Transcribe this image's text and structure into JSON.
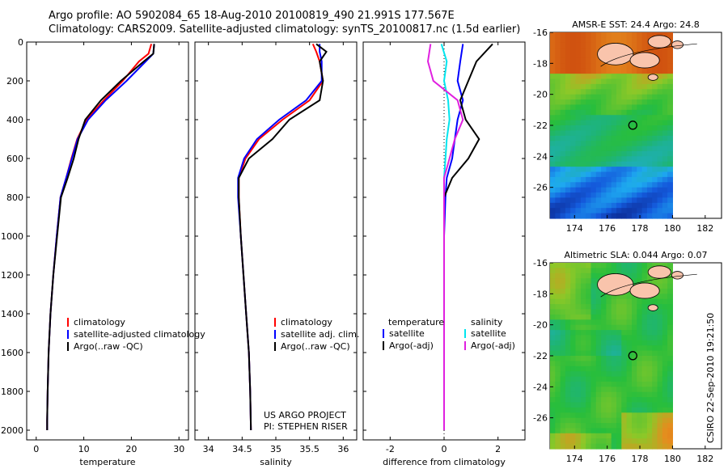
{
  "header": {
    "line1": "Argo profile: AO 5902084_65 18-Aug-2010 20100819_490 21.991S 177.567E",
    "line2": "Climatology: CARS2009. Satellite-adjusted climatology: synTS_20100817.nc (1.5d earlier)"
  },
  "footer": {
    "credit": "CSIRO 22-Sep-2010 19:21:50"
  },
  "colors": {
    "clim": "#ff0000",
    "sat": "#0000ff",
    "argo": "#000000",
    "sal_sat": "#00e5ee",
    "sal_argo": "#e020e0"
  },
  "chart_data": [
    {
      "type": "line",
      "name": "temperature",
      "xlabel": "temperature",
      "ylabel": "",
      "xlim": [
        -2,
        32
      ],
      "ylim": [
        2050,
        0
      ],
      "xticks": [
        "0",
        "10",
        "20",
        "30"
      ],
      "xtick_values": [
        0,
        10,
        20,
        30
      ],
      "yticks": [
        "0",
        "200",
        "400",
        "600",
        "800",
        "1000",
        "1200",
        "1400",
        "1600",
        "1800",
        "2000"
      ],
      "ytick_values": [
        0,
        200,
        400,
        600,
        800,
        1000,
        1200,
        1400,
        1600,
        1800,
        2000
      ],
      "legend": [
        "climatology",
        "satellite-adjusted climatology",
        "Argo(..raw -QC)"
      ],
      "series": [
        {
          "name": "climatology",
          "color": "#ff0000",
          "x": [
            24.2,
            23.6,
            21.6,
            18.2,
            14.2,
            10.6,
            8.6,
            7.4,
            6.3,
            5.1,
            4.3,
            3.6,
            3.0,
            2.6,
            2.4,
            2.3,
            2.3
          ],
          "y": [
            10,
            60,
            100,
            200,
            300,
            400,
            500,
            600,
            700,
            800,
            1000,
            1200,
            1400,
            1600,
            1800,
            1950,
            2000
          ]
        },
        {
          "name": "satellite-adjusted climatology",
          "color": "#0000ff",
          "x": [
            24.8,
            24.6,
            23.0,
            19.0,
            14.6,
            10.9,
            8.7,
            7.5,
            6.3,
            5.1,
            4.3,
            3.6,
            3.0,
            2.6,
            2.4,
            2.3,
            2.3
          ],
          "y": [
            10,
            60,
            100,
            200,
            300,
            400,
            500,
            600,
            700,
            800,
            1000,
            1200,
            1400,
            1600,
            1800,
            1950,
            2000
          ]
        },
        {
          "name": "Argo(..raw -QC)",
          "color": "#000000",
          "x": [
            24.8,
            24.6,
            22.6,
            17.8,
            13.6,
            10.3,
            8.9,
            7.9,
            6.6,
            5.2,
            4.4,
            3.6,
            3.0,
            2.6,
            2.4,
            2.3,
            2.3
          ],
          "y": [
            10,
            60,
            100,
            200,
            300,
            400,
            500,
            600,
            700,
            800,
            1000,
            1200,
            1400,
            1600,
            1800,
            1950,
            2000
          ]
        }
      ]
    },
    {
      "type": "line",
      "name": "salinity",
      "xlabel": "salinity",
      "ylabel": "",
      "xlim": [
        33.8,
        36.2
      ],
      "ylim": [
        2050,
        0
      ],
      "xticks": [
        "34",
        "34.5",
        "35",
        "35.5",
        "36"
      ],
      "xtick_values": [
        34,
        34.5,
        35,
        35.5,
        36
      ],
      "legend": [
        "climatology",
        "satellite adj. clim.",
        "Argo(..raw -QC)"
      ],
      "annotation": [
        "US ARGO PROJECT",
        "PI: STEPHEN RISER"
      ],
      "series": [
        {
          "name": "climatology",
          "color": "#ff0000",
          "x": [
            35.55,
            35.6,
            35.65,
            35.7,
            35.5,
            35.1,
            34.75,
            34.55,
            34.45,
            34.45,
            34.48,
            34.52,
            34.56,
            34.6,
            34.62,
            34.63
          ],
          "y": [
            10,
            50,
            100,
            200,
            300,
            400,
            500,
            600,
            700,
            800,
            1000,
            1200,
            1400,
            1600,
            1800,
            2000
          ]
        },
        {
          "name": "satellite adj. clim.",
          "color": "#0000ff",
          "x": [
            35.65,
            35.65,
            35.68,
            35.68,
            35.45,
            35.05,
            34.72,
            34.53,
            34.44,
            34.44,
            34.48,
            34.52,
            34.56,
            34.6,
            34.62,
            34.63
          ],
          "y": [
            10,
            50,
            100,
            200,
            300,
            400,
            500,
            600,
            700,
            800,
            1000,
            1200,
            1400,
            1600,
            1800,
            2000
          ]
        },
        {
          "name": "Argo(..raw -QC)",
          "color": "#000000",
          "x": [
            35.6,
            35.75,
            35.65,
            35.7,
            35.65,
            35.2,
            34.95,
            34.6,
            34.45,
            34.45,
            34.48,
            34.52,
            34.56,
            34.6,
            34.62,
            34.63
          ],
          "y": [
            10,
            50,
            100,
            200,
            300,
            400,
            500,
            600,
            700,
            800,
            1000,
            1200,
            1400,
            1600,
            1800,
            2000
          ]
        }
      ]
    },
    {
      "type": "line",
      "name": "difference",
      "xlabel": "difference from climatology",
      "ylabel": "",
      "xlim": [
        -3,
        3
      ],
      "ylim": [
        2050,
        0
      ],
      "xticks": [
        "-2",
        "0",
        "2"
      ],
      "xtick_values": [
        -2,
        0,
        2
      ],
      "legend_left_title": "temperature",
      "legend_right_title": "salinity",
      "legend": [
        "satellite",
        "Argo(-adj)",
        "satellite",
        "Argo(-adj)"
      ],
      "series": [
        {
          "name": "temperature satellite",
          "color": "#0000ff",
          "x": [
            0.7,
            0.6,
            0.5,
            0.7,
            0.5,
            0.4,
            0.3,
            0.1,
            0.05,
            0,
            0,
            0,
            0,
            0,
            0
          ],
          "y": [
            10,
            100,
            200,
            300,
            400,
            500,
            600,
            700,
            800,
            1000,
            1200,
            1400,
            1600,
            1800,
            2000
          ]
        },
        {
          "name": "temperature Argo(-adj)",
          "color": "#000000",
          "x": [
            1.8,
            1.2,
            0.9,
            0.6,
            0.8,
            1.3,
            0.9,
            0.3,
            0,
            0,
            0,
            0,
            0,
            0,
            0
          ],
          "y": [
            10,
            100,
            200,
            300,
            400,
            500,
            600,
            700,
            800,
            1000,
            1200,
            1400,
            1600,
            1800,
            2000
          ]
        },
        {
          "name": "salinity satellite",
          "color": "#00e5ee",
          "x": [
            -0.1,
            0.1,
            0.0,
            0.15,
            0.2,
            0.1,
            0.05,
            0,
            0,
            0,
            0,
            0,
            0,
            0,
            0
          ],
          "y": [
            10,
            100,
            200,
            300,
            400,
            500,
            600,
            700,
            800,
            1000,
            1200,
            1400,
            1600,
            1800,
            2000
          ]
        },
        {
          "name": "salinity Argo(-adj)",
          "color": "#e020e0",
          "x": [
            -0.5,
            -0.6,
            -0.4,
            0.5,
            0.7,
            0.4,
            0.2,
            0.0,
            0,
            0,
            0,
            0,
            0,
            0,
            0
          ],
          "y": [
            10,
            100,
            200,
            300,
            400,
            500,
            600,
            700,
            800,
            1000,
            1200,
            1400,
            1600,
            1800,
            2000
          ]
        }
      ]
    },
    {
      "type": "heatmap",
      "name": "sst-map",
      "title": "AMSR-E SST: 24.4 Argo: 24.8",
      "xlim": [
        172.5,
        183
      ],
      "ylim": [
        -28,
        -16
      ],
      "xticks": [
        "174",
        "176",
        "178",
        "180",
        "182"
      ],
      "xtick_values": [
        174,
        176,
        178,
        180,
        182
      ],
      "yticks": [
        "-16",
        "-18",
        "-20",
        "-22",
        "-24",
        "-26"
      ],
      "ytick_values": [
        -16,
        -18,
        -20,
        -22,
        -24,
        -26
      ],
      "data_xlim": [
        172.5,
        180
      ],
      "data_ylim": [
        -28,
        -16
      ],
      "marker": {
        "lon": 177.567,
        "lat": -21.991
      }
    },
    {
      "type": "heatmap",
      "name": "sla-map",
      "title": "Altimetric SLA: 0.044 Argo: 0.07",
      "xlim": [
        172.5,
        183
      ],
      "ylim": [
        -28,
        -16
      ],
      "xticks": [
        "174",
        "176",
        "178",
        "180",
        "182"
      ],
      "xtick_values": [
        174,
        176,
        178,
        180,
        182
      ],
      "yticks": [
        "-16",
        "-18",
        "-20",
        "-22",
        "-24",
        "-26"
      ],
      "ytick_values": [
        -16,
        -18,
        -20,
        -22,
        -24,
        -26
      ],
      "data_xlim": [
        172.5,
        180
      ],
      "data_ylim": [
        -28,
        -16
      ],
      "marker": {
        "lon": 177.567,
        "lat": -21.991
      }
    }
  ]
}
